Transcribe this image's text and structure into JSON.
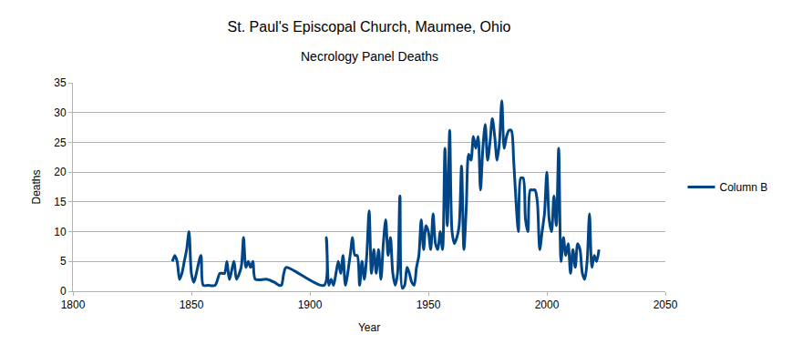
{
  "chart_data": {
    "type": "line",
    "title": "St. Paul's Episcopal Church, Maumee, Ohio",
    "subtitle": "Necrology Panel Deaths",
    "x_label": "Year",
    "y_label": "Deaths",
    "x": [
      1842,
      1843,
      1844,
      1845,
      1846,
      1847,
      1848,
      1849,
      1850,
      1851,
      1854,
      1855,
      1857,
      1860,
      1862,
      1863,
      1864,
      1865,
      1866,
      1868,
      1869,
      1871,
      1872,
      1873,
      1874,
      1875,
      1876,
      1877,
      1882,
      1885,
      1887,
      1888,
      1889,
      1890,
      1906,
      1907,
      1908,
      1909,
      1910,
      1911,
      1912,
      1913,
      1914,
      1915,
      1917,
      1918,
      1919,
      1920,
      1921,
      1922,
      1923,
      1924,
      1925,
      1926,
      1927,
      1928,
      1929,
      1930,
      1931,
      1932,
      1933,
      1934,
      1935,
      1936,
      1937,
      1938,
      1939,
      1940,
      1941,
      1942,
      1943,
      1944,
      1945,
      1946,
      1947,
      1948,
      1949,
      1950,
      1951,
      1952,
      1953,
      1954,
      1955,
      1956,
      1957,
      1958,
      1959,
      1960,
      1961,
      1962,
      1963,
      1964,
      1965,
      1966,
      1967,
      1968,
      1969,
      1970,
      1971,
      1972,
      1973,
      1974,
      1975,
      1976,
      1977,
      1978,
      1979,
      1980,
      1981,
      1982,
      1983,
      1984,
      1985,
      1986,
      1987,
      1988,
      1989,
      1990,
      1991,
      1992,
      1993,
      1994,
      1995,
      1996,
      1997,
      1998,
      1999,
      2000,
      2001,
      2002,
      2003,
      2004,
      2005,
      2006,
      2007,
      2008,
      2009,
      2010,
      2011,
      2012,
      2013,
      2014,
      2015,
      2016,
      2017,
      2018,
      2019,
      2020,
      2021,
      2022
    ],
    "series": [
      {
        "name": "Column B",
        "color": "#004586",
        "values": [
          5,
          6,
          5,
          2,
          3,
          5,
          7,
          10,
          3,
          1.5,
          6,
          1,
          1,
          1,
          3,
          3,
          3,
          5,
          2,
          5,
          2,
          4,
          9,
          4,
          5,
          4,
          5,
          2,
          2,
          1.5,
          1,
          1,
          3,
          4,
          1,
          9,
          1,
          2,
          1,
          3,
          5,
          3,
          6,
          1,
          6,
          9,
          6,
          6,
          1,
          5,
          2,
          6,
          13.5,
          3,
          7,
          3,
          7,
          2,
          8,
          12,
          6,
          9,
          3,
          1,
          3,
          16,
          0.5,
          1,
          4,
          3,
          1.5,
          1,
          4,
          6,
          12,
          7,
          11,
          10,
          7,
          13,
          8,
          7,
          10,
          7,
          24,
          11,
          27,
          10,
          8,
          9,
          11,
          21,
          7,
          14,
          23,
          22,
          26,
          24,
          26,
          17,
          24,
          28,
          22,
          25,
          29,
          26,
          22,
          25,
          32,
          24,
          26,
          27,
          27,
          22,
          15,
          10,
          19,
          19,
          12,
          10,
          17,
          17,
          17,
          15,
          7,
          10,
          13,
          20,
          12,
          10,
          16,
          11,
          24,
          5,
          9,
          6,
          8,
          3,
          7,
          4,
          8,
          7,
          3,
          2,
          5,
          13,
          4,
          6,
          5,
          7
        ]
      }
    ],
    "xlim": [
      1800,
      2050
    ],
    "xticks": [
      1800,
      1850,
      1900,
      1950,
      2000,
      2050
    ],
    "ylim": [
      0,
      35
    ],
    "yticks": [
      0,
      5,
      10,
      15,
      20,
      25,
      30,
      35
    ],
    "grid": true,
    "legend": "right"
  }
}
